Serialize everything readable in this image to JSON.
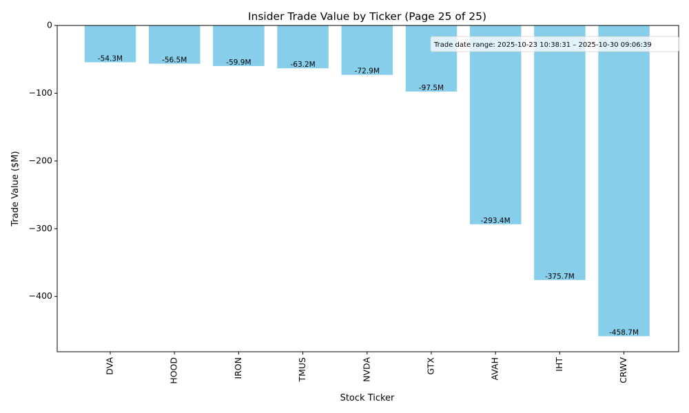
{
  "chart_data": {
    "type": "bar",
    "title": "Insider Trade Value by Ticker (Page 25 of 25)",
    "xlabel": "Stock Ticker",
    "ylabel": "Trade Value ($M)",
    "categories": [
      "DVA",
      "HOOD",
      "IRON",
      "TMUS",
      "NVDA",
      "GTX",
      "AVAH",
      "IHT",
      "CRWV"
    ],
    "values": [
      -54.3,
      -56.5,
      -59.9,
      -63.2,
      -72.9,
      -97.5,
      -293.4,
      -375.7,
      -458.7
    ],
    "data_labels": [
      "-54.3M",
      "-56.5M",
      "-59.9M",
      "-63.2M",
      "-72.9M",
      "-97.5M",
      "-293.4M",
      "-375.7M",
      "-458.7M"
    ],
    "ylim": [
      -481.6,
      0
    ],
    "yticks": [
      0,
      -100,
      -200,
      -300,
      -400
    ],
    "ytick_labels": [
      "0",
      "−100",
      "−200",
      "−300",
      "−400"
    ],
    "annotation": "Trade date range: 2025-10-23 10:38:31 – 2025-10-30 09:06:39",
    "annotation_position": "top-right",
    "bar_color": "#87ceeb",
    "grid": false
  }
}
